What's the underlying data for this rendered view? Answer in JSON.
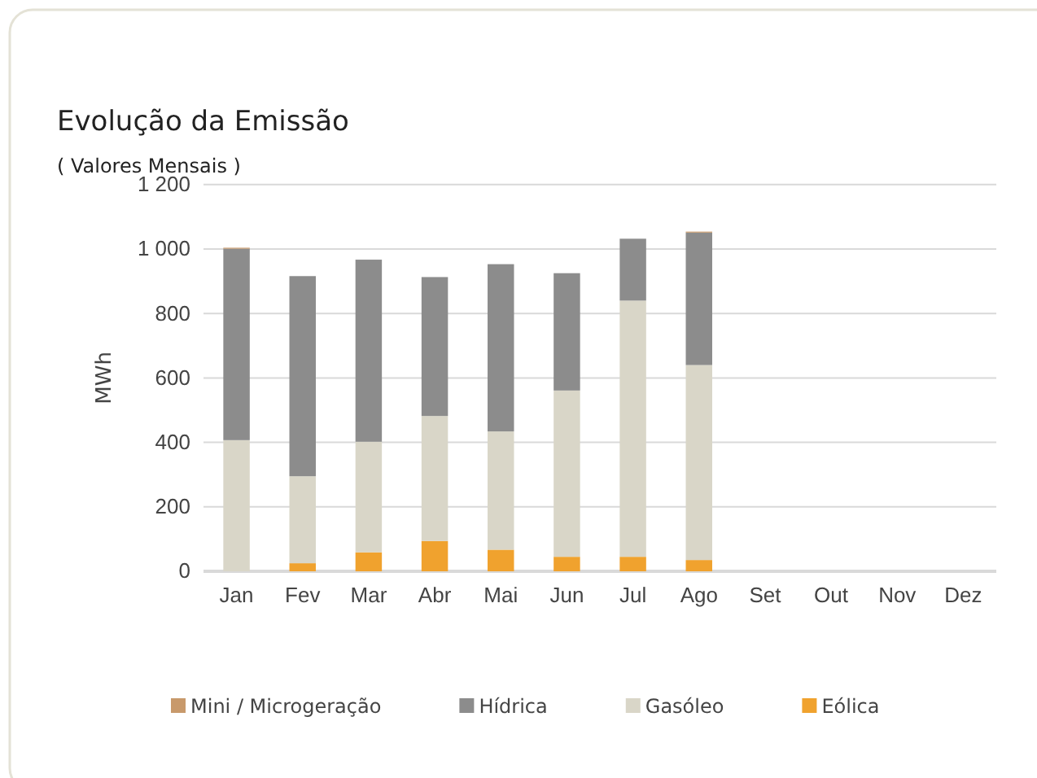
{
  "chart_data": {
    "type": "bar",
    "title": "Evolução da Emissão",
    "subtitle": "( Valores Mensais )",
    "ylabel": "MWh",
    "categories": [
      "Jan",
      "Fev",
      "Mar",
      "Abr",
      "Mai",
      "Jun",
      "Jul",
      "Ago",
      "Set",
      "Out",
      "Nov",
      "Dez"
    ],
    "stacked": true,
    "grid": "y",
    "legend": "bottom",
    "ylim": [
      0,
      1200
    ],
    "yticks": [
      0,
      200,
      400,
      600,
      800,
      {
        "value": 1000,
        "label": "1 000"
      },
      {
        "value": 1200,
        "label": "1 200"
      }
    ],
    "series": [
      {
        "name": "Eólica",
        "color": "#f0a22e",
        "values": [
          0,
          25,
          59,
          94,
          67,
          45,
          45,
          35,
          null,
          null,
          null,
          null
        ]
      },
      {
        "name": "Gasóleo",
        "color": "#d9d6c8",
        "values": [
          407,
          270,
          343,
          388,
          367,
          516,
          795,
          605,
          null,
          null,
          null,
          null
        ]
      },
      {
        "name": "Hídrica",
        "color": "#8c8c8c",
        "values": [
          594,
          621,
          565,
          431,
          519,
          364,
          192,
          411,
          null,
          null,
          null,
          null
        ]
      },
      {
        "name": "Mini / Microgeração",
        "color": "#c8996b",
        "values": [
          3,
          0,
          0,
          0,
          0,
          0,
          0,
          3,
          null,
          null,
          null,
          null
        ]
      }
    ]
  }
}
